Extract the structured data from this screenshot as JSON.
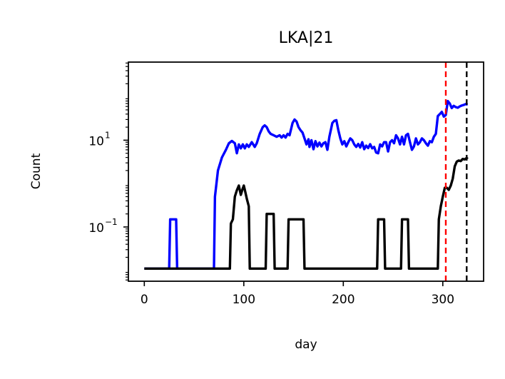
{
  "chart_data": {
    "type": "line",
    "title": "LKA|21",
    "xlabel": "day",
    "ylabel": "Count",
    "xlim": [
      -16,
      341
    ],
    "ylim_log10": [
      -2.25,
      2.8
    ],
    "yscale": "log",
    "xticks": [
      {
        "value": 0,
        "label": "0"
      },
      {
        "value": 100,
        "label": "100"
      },
      {
        "value": 200,
        "label": "200"
      },
      {
        "value": 300,
        "label": "300"
      }
    ],
    "yticks": [
      {
        "value": 0.1,
        "base": "10",
        "exp": "−1"
      },
      {
        "value": 10,
        "base": "10",
        "exp": "1"
      }
    ],
    "grid": false,
    "legend": "none",
    "series": [
      {
        "color": "#0000ff",
        "points": [
          [
            0,
            0.011
          ],
          [
            25,
            0.011
          ],
          [
            26,
            0.15
          ],
          [
            32,
            0.15
          ],
          [
            33,
            0.011
          ],
          [
            70,
            0.011
          ],
          [
            71,
            0.5
          ],
          [
            74,
            2
          ],
          [
            78,
            4
          ],
          [
            82,
            6
          ],
          [
            85,
            8.5
          ],
          [
            88,
            9.6
          ],
          [
            91,
            8.5
          ],
          [
            93,
            5
          ],
          [
            95,
            8
          ],
          [
            97,
            6.5
          ],
          [
            99,
            8
          ],
          [
            101,
            6.5
          ],
          [
            103,
            8
          ],
          [
            105,
            7
          ],
          [
            108,
            9
          ],
          [
            111,
            7
          ],
          [
            113,
            8.5
          ],
          [
            116,
            14
          ],
          [
            119,
            20
          ],
          [
            121,
            22
          ],
          [
            123,
            20
          ],
          [
            125,
            16
          ],
          [
            127,
            14
          ],
          [
            130,
            13
          ],
          [
            133,
            12
          ],
          [
            136,
            13
          ],
          [
            138,
            11.5
          ],
          [
            140,
            13
          ],
          [
            142,
            11.5
          ],
          [
            144,
            14
          ],
          [
            146,
            13
          ],
          [
            149,
            25
          ],
          [
            151,
            30
          ],
          [
            153,
            27
          ],
          [
            155,
            20
          ],
          [
            157,
            17
          ],
          [
            159,
            15
          ],
          [
            161,
            11
          ],
          [
            163,
            8
          ],
          [
            165,
            10.5
          ],
          [
            166,
            7
          ],
          [
            168,
            10
          ],
          [
            170,
            6.2
          ],
          [
            172,
            9.5
          ],
          [
            174,
            7.2
          ],
          [
            176,
            8.8
          ],
          [
            178,
            7.2
          ],
          [
            180,
            8.5
          ],
          [
            182,
            9
          ],
          [
            184,
            6
          ],
          [
            186,
            12
          ],
          [
            189,
            25
          ],
          [
            191,
            28
          ],
          [
            193,
            29
          ],
          [
            195,
            17
          ],
          [
            197,
            11
          ],
          [
            199,
            8
          ],
          [
            201,
            9.5
          ],
          [
            203,
            7.2
          ],
          [
            205,
            9
          ],
          [
            207,
            11
          ],
          [
            209,
            10
          ],
          [
            211,
            8
          ],
          [
            213,
            7
          ],
          [
            215,
            8.2
          ],
          [
            217,
            6.8
          ],
          [
            219,
            9
          ],
          [
            221,
            6.2
          ],
          [
            223,
            7.5
          ],
          [
            225,
            6.6
          ],
          [
            227,
            8.1
          ],
          [
            229,
            6.5
          ],
          [
            231,
            7
          ],
          [
            233,
            5.2
          ],
          [
            235,
            5
          ],
          [
            237,
            8
          ],
          [
            239,
            7.2
          ],
          [
            241,
            9
          ],
          [
            243,
            9
          ],
          [
            245,
            5.5
          ],
          [
            247,
            9
          ],
          [
            249,
            10
          ],
          [
            251,
            8.5
          ],
          [
            253,
            13
          ],
          [
            255,
            11
          ],
          [
            257,
            8
          ],
          [
            259,
            12
          ],
          [
            261,
            8
          ],
          [
            263,
            13
          ],
          [
            265,
            14
          ],
          [
            267,
            9
          ],
          [
            269,
            6
          ],
          [
            271,
            7.2
          ],
          [
            273,
            11
          ],
          [
            275,
            8
          ],
          [
            277,
            9
          ],
          [
            279,
            11
          ],
          [
            281,
            10
          ],
          [
            283,
            8.5
          ],
          [
            285,
            7.5
          ],
          [
            287,
            9.5
          ],
          [
            289,
            9
          ],
          [
            291,
            12
          ],
          [
            293,
            14
          ],
          [
            295,
            36
          ],
          [
            297,
            40
          ],
          [
            299,
            45
          ],
          [
            301,
            35
          ],
          [
            303,
            38
          ],
          [
            305,
            80
          ],
          [
            307,
            70
          ],
          [
            309,
            55
          ],
          [
            311,
            62
          ],
          [
            313,
            58
          ],
          [
            315,
            56
          ],
          [
            317,
            60
          ],
          [
            319,
            63
          ],
          [
            321,
            65
          ],
          [
            323,
            68
          ],
          [
            325,
            66
          ]
        ]
      },
      {
        "color": "#000000",
        "points": [
          [
            0,
            0.011
          ],
          [
            86,
            0.011
          ],
          [
            87,
            0.12
          ],
          [
            89,
            0.15
          ],
          [
            91,
            0.5
          ],
          [
            93,
            0.7
          ],
          [
            95,
            0.9
          ],
          [
            97,
            0.55
          ],
          [
            99,
            0.78
          ],
          [
            100,
            0.9
          ],
          [
            101,
            0.72
          ],
          [
            103,
            0.45
          ],
          [
            105,
            0.3
          ],
          [
            106,
            0.011
          ],
          [
            122,
            0.011
          ],
          [
            123,
            0.2
          ],
          [
            130,
            0.2
          ],
          [
            131,
            0.011
          ],
          [
            144,
            0.011
          ],
          [
            145,
            0.15
          ],
          [
            160,
            0.15
          ],
          [
            161,
            0.011
          ],
          [
            234,
            0.011
          ],
          [
            235,
            0.15
          ],
          [
            241,
            0.15
          ],
          [
            242,
            0.011
          ],
          [
            258,
            0.011
          ],
          [
            259,
            0.15
          ],
          [
            265,
            0.15
          ],
          [
            266,
            0.011
          ],
          [
            295,
            0.011
          ],
          [
            296,
            0.15
          ],
          [
            298,
            0.3
          ],
          [
            300,
            0.5
          ],
          [
            302,
            0.8
          ],
          [
            304,
            0.8
          ],
          [
            306,
            0.72
          ],
          [
            308,
            0.9
          ],
          [
            310,
            1.3
          ],
          [
            312,
            2.5
          ],
          [
            314,
            3.2
          ],
          [
            316,
            3.4
          ],
          [
            318,
            3.3
          ],
          [
            320,
            3.7
          ],
          [
            322,
            3.6
          ],
          [
            324,
            3.9
          ],
          [
            325,
            3.7
          ]
        ]
      }
    ],
    "vlines": [
      {
        "x": 303,
        "color": "#ff0000",
        "style": "dashed"
      },
      {
        "x": 324,
        "color": "#000000",
        "style": "dashed"
      }
    ]
  }
}
